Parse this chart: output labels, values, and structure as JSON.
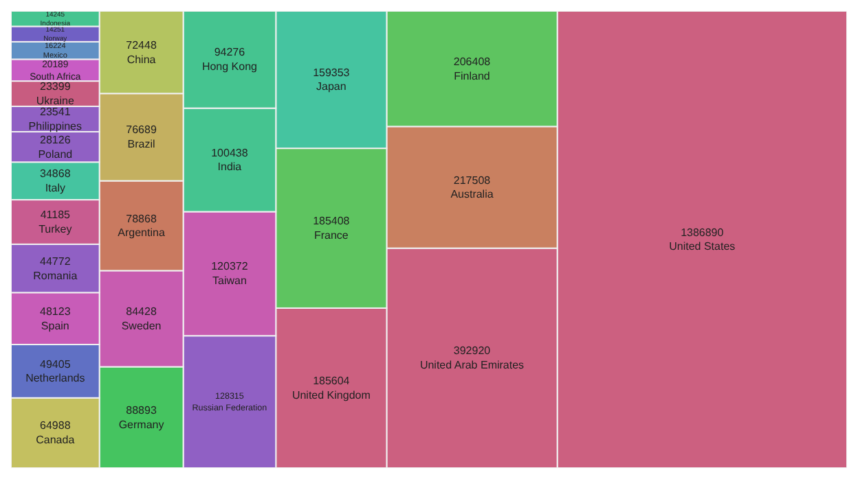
{
  "chart_data": {
    "type": "other",
    "categories": [
      "United States",
      "United Arab Emirates",
      "Australia",
      "Finland",
      "United Kingdom",
      "France",
      "Japan",
      "Russian Federation",
      "Taiwan",
      "India",
      "Hong Kong",
      "Germany",
      "Sweden",
      "Argentina",
      "Brazil",
      "China",
      "Canada",
      "Netherlands",
      "Spain",
      "Romania",
      "Turkey",
      "Italy",
      "Poland",
      "Philippines",
      "Ukraine",
      "South Africa",
      "Mexico",
      "Norway",
      "Indonesia"
    ],
    "values": [
      1386890,
      392920,
      217508,
      206408,
      185604,
      185408,
      159353,
      128315,
      120372,
      100438,
      94276,
      88893,
      84428,
      78868,
      76689,
      72448,
      64988,
      49405,
      48123,
      44772,
      41185,
      34868,
      28126,
      23541,
      23399,
      20189,
      16224,
      14251,
      14245
    ],
    "data_labels": true,
    "colors": [
      "#cc6080",
      "#cc6080",
      "#c98060",
      "#5ec460",
      "#cc6080",
      "#5ec460",
      "#45c4a0",
      "#9060c4",
      "#c85cb0",
      "#45c490",
      "#45c490",
      "#45c460",
      "#c85cb0",
      "#c97a60",
      "#c4b060",
      "#b4c460",
      "#c4c060",
      "#6070c4",
      "#c85cb8",
      "#9060c4",
      "#c85c90",
      "#45c4a0",
      "#9060c4",
      "#9060c4",
      "#c85c80",
      "#c85cc4",
      "#6090c4",
      "#7060c4",
      "#45c490"
    ]
  }
}
